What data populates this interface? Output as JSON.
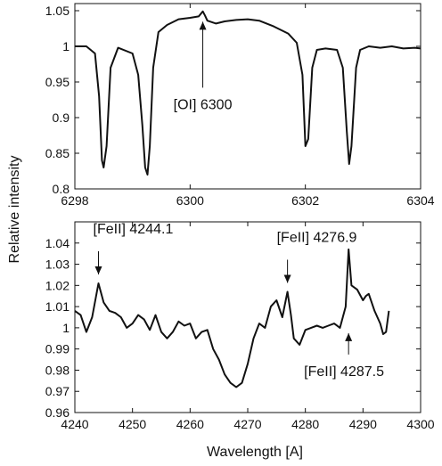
{
  "chart_data": [
    {
      "type": "line",
      "xlim": [
        6298,
        6304
      ],
      "ylim": [
        0.8,
        1.06
      ],
      "xticks": [
        "6298",
        "6300",
        "6302",
        "6304"
      ],
      "yticks": [
        "0.8",
        "0.85",
        "0.9",
        "0.95",
        "1",
        "1.05"
      ],
      "grid": false,
      "series": [
        {
          "x": [
            6298.0,
            6298.2,
            6298.35,
            6298.42,
            6298.47,
            6298.5,
            6298.55,
            6298.62,
            6298.75,
            6299.0,
            6299.1,
            6299.17,
            6299.22,
            6299.26,
            6299.3,
            6299.36,
            6299.45,
            6299.6,
            6299.8,
            6300.0,
            6300.15,
            6300.22,
            6300.26,
            6300.3,
            6300.45,
            6300.6,
            6300.8,
            6301.0,
            6301.2,
            6301.45,
            6301.7,
            6301.85,
            6301.95,
            6302.0,
            6302.05,
            6302.12,
            6302.2,
            6302.35,
            6302.55,
            6302.65,
            6302.72,
            6302.76,
            6302.8,
            6302.88,
            6302.95,
            6303.1,
            6303.3,
            6303.5,
            6303.7,
            6303.9,
            6304.0
          ],
          "y": [
            1.0,
            1.0,
            0.99,
            0.93,
            0.84,
            0.83,
            0.86,
            0.97,
            0.998,
            0.99,
            0.96,
            0.89,
            0.83,
            0.82,
            0.86,
            0.97,
            1.02,
            1.03,
            1.038,
            1.04,
            1.042,
            1.049,
            1.043,
            1.036,
            1.032,
            1.035,
            1.037,
            1.038,
            1.036,
            1.028,
            1.018,
            1.005,
            0.96,
            0.86,
            0.87,
            0.97,
            0.995,
            0.997,
            0.995,
            0.97,
            0.88,
            0.835,
            0.86,
            0.97,
            0.995,
            1.0,
            0.998,
            1.0,
            0.997,
            0.998,
            0.997
          ]
        }
      ],
      "annotations": [
        {
          "text": "[OI] 6300",
          "x": 6300.22,
          "y": 1.042
        }
      ]
    },
    {
      "type": "line",
      "xlim": [
        4240,
        4300
      ],
      "ylim": [
        0.96,
        1.05
      ],
      "xticks": [
        "4240",
        "4250",
        "4260",
        "4270",
        "4280",
        "4290",
        "4300"
      ],
      "yticks": [
        "0.96",
        "0.97",
        "0.98",
        "0.99",
        "1",
        "1.01",
        "1.02",
        "1.03",
        "1.04"
      ],
      "xlabel": "Wavelength [A]",
      "grid": false,
      "series": [
        {
          "x": [
            4240.0,
            4241.0,
            4242.0,
            4243.0,
            4244.1,
            4245.0,
            4246.0,
            4247.0,
            4248.0,
            4249.0,
            4250.0,
            4251.0,
            4252.0,
            4253.0,
            4254.0,
            4255.0,
            4256.0,
            4257.0,
            4258.0,
            4259.0,
            4260.0,
            4261.0,
            4262.0,
            4263.0,
            4264.0,
            4265.0,
            4266.0,
            4267.0,
            4268.0,
            4269.0,
            4270.0,
            4271.0,
            4272.0,
            4273.0,
            4274.0,
            4275.0,
            4276.0,
            4276.9,
            4277.5,
            4278.0,
            4279.0,
            4280.0,
            4281.0,
            4282.0,
            4283.0,
            4284.0,
            4285.0,
            4286.0,
            4287.0,
            4287.5,
            4288.0,
            4289.0,
            4290.0,
            4290.5,
            4291.0,
            4292.0,
            4293.0,
            4293.5,
            4294.0,
            4294.5
          ],
          "y": [
            1.008,
            1.006,
            0.998,
            1.005,
            1.021,
            1.012,
            1.008,
            1.007,
            1.005,
            1.0,
            1.002,
            1.006,
            1.004,
            0.999,
            1.006,
            0.998,
            0.995,
            0.998,
            1.003,
            1.001,
            1.002,
            0.995,
            0.998,
            0.999,
            0.99,
            0.985,
            0.978,
            0.974,
            0.972,
            0.974,
            0.983,
            0.995,
            1.002,
            1.0,
            1.01,
            1.013,
            1.005,
            1.017,
            1.006,
            0.995,
            0.992,
            0.999,
            1.0,
            1.001,
            1.0,
            1.001,
            1.002,
            1.0,
            1.01,
            1.037,
            1.02,
            1.018,
            1.013,
            1.015,
            1.016,
            1.008,
            1.002,
            0.997,
            0.998,
            1.008
          ]
        }
      ],
      "annotations": [
        {
          "text": "[FeII] 4244.1",
          "x": 4244.1,
          "y": 1.021
        },
        {
          "text": "[FeII] 4276.9",
          "x": 4276.9,
          "y": 1.017
        },
        {
          "text": "[FeII] 4287.5",
          "x": 4287.5,
          "y": 1.0
        }
      ]
    }
  ],
  "figure": {
    "ylabel": "Relative intensity"
  }
}
